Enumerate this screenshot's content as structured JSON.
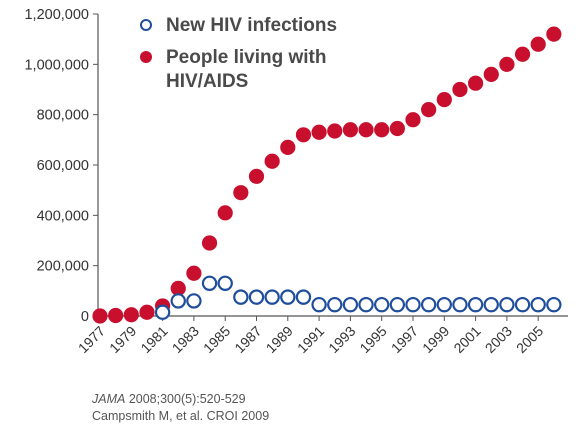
{
  "chart_data": {
    "type": "scatter",
    "title": "",
    "xlabel": "",
    "ylabel": "",
    "ylim": [
      0,
      1200000
    ],
    "xlim": [
      1977,
      2006
    ],
    "yticks": [
      0,
      200000,
      400000,
      600000,
      800000,
      1000000,
      1200000
    ],
    "ytick_labels": [
      "0",
      "200,000",
      "400,000",
      "600,000",
      "800,000",
      "1,000,000",
      "1,200,000"
    ],
    "xticks": [
      1977,
      1979,
      1981,
      1983,
      1985,
      1987,
      1989,
      1991,
      1993,
      1995,
      1997,
      1999,
      2001,
      2003,
      2005
    ],
    "xtick_labels": [
      "1977",
      "1979",
      "1981",
      "1983",
      "1985",
      "1987",
      "1989",
      "1991",
      "1993",
      "1995",
      "1997",
      "1999",
      "2001",
      "2003",
      "2005"
    ],
    "grid": false,
    "legend_position": "top",
    "series": [
      {
        "name": "New HIV infections",
        "marker": "open-circle",
        "color": "#1f4e9c",
        "x": [
          1981,
          1982,
          1983,
          1984,
          1985,
          1986,
          1987,
          1988,
          1989,
          1990,
          1991,
          1992,
          1993,
          1994,
          1995,
          1996,
          1997,
          1998,
          1999,
          2000,
          2001,
          2002,
          2003,
          2004,
          2005,
          2006
        ],
        "y": [
          15000,
          60000,
          60000,
          130000,
          130000,
          75000,
          75000,
          75000,
          75000,
          75000,
          45000,
          45000,
          45000,
          45000,
          45000,
          45000,
          45000,
          45000,
          45000,
          45000,
          45000,
          45000,
          45000,
          45000,
          45000,
          45000
        ]
      },
      {
        "name": "People living with HIV/AIDS",
        "marker": "filled-circle",
        "color": "#c8102e",
        "x": [
          1977,
          1978,
          1979,
          1980,
          1981,
          1982,
          1983,
          1984,
          1985,
          1986,
          1987,
          1988,
          1989,
          1990,
          1991,
          1992,
          1993,
          1994,
          1995,
          1996,
          1997,
          1998,
          1999,
          2000,
          2001,
          2002,
          2003,
          2004,
          2005,
          2006
        ],
        "y": [
          0,
          2000,
          5000,
          15000,
          40000,
          110000,
          170000,
          290000,
          410000,
          490000,
          555000,
          615000,
          670000,
          720000,
          730000,
          735000,
          740000,
          740000,
          740000,
          745000,
          780000,
          820000,
          860000,
          900000,
          925000,
          960000,
          1000000,
          1040000,
          1080000,
          1120000
        ]
      }
    ]
  },
  "legend": {
    "items": [
      {
        "label": "New HIV infections",
        "color": "#1f4e9c",
        "marker": "open-circle"
      },
      {
        "label": "People living with HIV/AIDS",
        "color": "#c8102e",
        "marker": "filled-circle"
      }
    ]
  },
  "source": {
    "journal": "JAMA",
    "citation": "2008;300(5):520-529",
    "line2": "Campsmith M, et al. CROI 2009"
  }
}
